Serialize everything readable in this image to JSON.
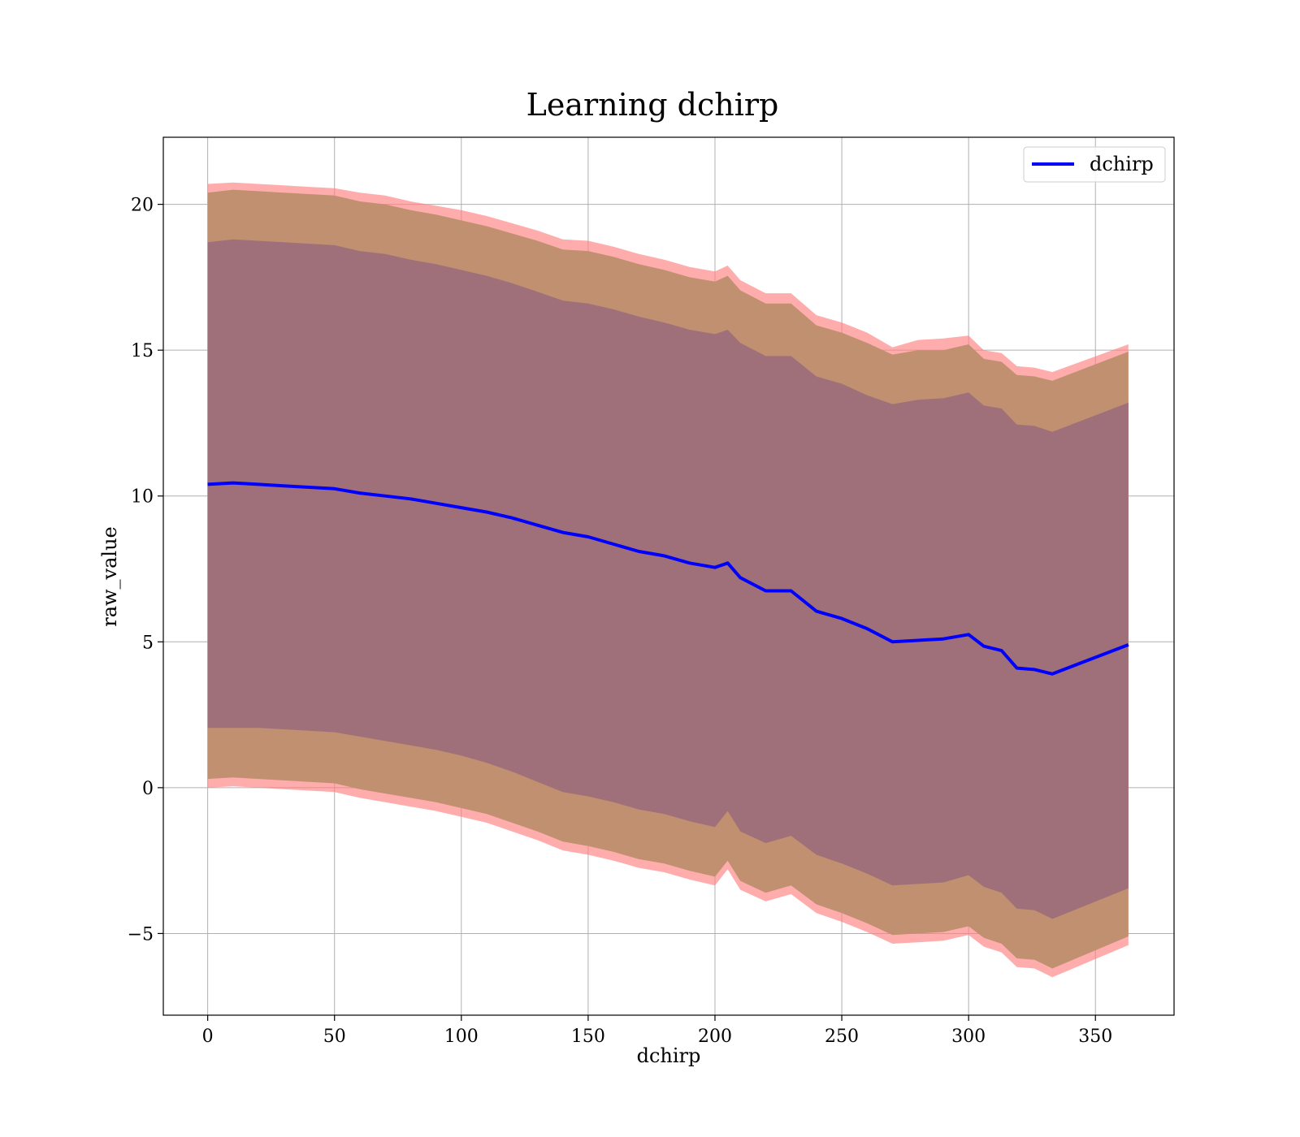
{
  "chart_data": {
    "type": "line",
    "title": "Learning dchirp",
    "xlabel": "dchirp",
    "ylabel": "raw_value",
    "xlim": [
      -17.5,
      381
    ],
    "ylim": [
      -7.8,
      22.3
    ],
    "xticks": [
      0,
      50,
      100,
      150,
      200,
      250,
      300,
      350
    ],
    "xtick_labels": [
      "0",
      "50",
      "100",
      "150",
      "200",
      "250",
      "300",
      "350"
    ],
    "yticks": [
      -5,
      0,
      5,
      10,
      15,
      20
    ],
    "ytick_labels": [
      "−5",
      "0",
      "5",
      "10",
      "15",
      "20"
    ],
    "grid": true,
    "legend": {
      "position": "top-right",
      "entries": [
        "dchirp"
      ]
    },
    "colors": {
      "line": "#0000ff",
      "outer_band": "#ff8080",
      "middle_band": "#c09070",
      "inner_band": "#a0707a",
      "grid": "#b0b0b0"
    },
    "series": [
      {
        "name": "dchirp",
        "x": [
          0,
          10,
          20,
          30,
          40,
          50,
          60,
          70,
          80,
          90,
          100,
          110,
          120,
          130,
          140,
          150,
          160,
          170,
          180,
          190,
          200,
          205,
          210,
          220,
          230,
          240,
          250,
          260,
          270,
          280,
          290,
          300,
          306,
          313,
          319,
          326,
          333,
          363
        ],
        "values": [
          10.4,
          10.45,
          10.4,
          10.35,
          10.3,
          10.25,
          10.1,
          10.0,
          9.9,
          9.75,
          9.6,
          9.45,
          9.25,
          9.0,
          8.75,
          8.6,
          8.35,
          8.1,
          7.95,
          7.7,
          7.55,
          7.7,
          7.2,
          6.75,
          6.75,
          6.05,
          5.8,
          5.45,
          5.0,
          5.05,
          5.1,
          5.25,
          4.85,
          4.7,
          4.1,
          4.05,
          3.9,
          4.9
        ]
      }
    ],
    "bands": {
      "x": [
        0,
        10,
        20,
        30,
        40,
        50,
        60,
        70,
        80,
        90,
        100,
        110,
        120,
        130,
        140,
        150,
        160,
        170,
        180,
        190,
        200,
        205,
        210,
        220,
        230,
        240,
        250,
        260,
        270,
        280,
        290,
        300,
        306,
        313,
        319,
        326,
        333,
        363
      ],
      "outer_upper": [
        20.7,
        20.75,
        20.7,
        20.65,
        20.6,
        20.55,
        20.4,
        20.3,
        20.1,
        19.95,
        19.8,
        19.6,
        19.35,
        19.1,
        18.8,
        18.75,
        18.55,
        18.3,
        18.1,
        17.85,
        17.7,
        17.9,
        17.4,
        16.95,
        16.95,
        16.2,
        15.95,
        15.6,
        15.1,
        15.35,
        15.4,
        15.5,
        15.0,
        14.9,
        14.45,
        14.4,
        14.25,
        15.2
      ],
      "middle_upper": [
        20.4,
        20.5,
        20.45,
        20.4,
        20.35,
        20.3,
        20.1,
        20.0,
        19.8,
        19.65,
        19.45,
        19.25,
        19.0,
        18.75,
        18.45,
        18.4,
        18.2,
        17.95,
        17.75,
        17.5,
        17.35,
        17.55,
        17.05,
        16.6,
        16.6,
        15.85,
        15.6,
        15.25,
        14.85,
        15.0,
        15.0,
        15.2,
        14.7,
        14.6,
        14.15,
        14.1,
        13.95,
        14.95
      ],
      "inner_upper": [
        18.7,
        18.8,
        18.75,
        18.7,
        18.65,
        18.6,
        18.4,
        18.3,
        18.1,
        17.95,
        17.75,
        17.55,
        17.3,
        17.0,
        16.7,
        16.6,
        16.4,
        16.15,
        15.95,
        15.7,
        15.55,
        15.7,
        15.25,
        14.8,
        14.8,
        14.1,
        13.85,
        13.45,
        13.15,
        13.3,
        13.35,
        13.55,
        13.1,
        13.0,
        12.45,
        12.4,
        12.2,
        13.2
      ],
      "inner_lower": [
        2.05,
        2.05,
        2.05,
        2.0,
        1.95,
        1.9,
        1.75,
        1.6,
        1.45,
        1.3,
        1.1,
        0.85,
        0.55,
        0.2,
        -0.15,
        -0.3,
        -0.5,
        -0.75,
        -0.9,
        -1.15,
        -1.35,
        -0.8,
        -1.5,
        -1.9,
        -1.65,
        -2.3,
        -2.6,
        -2.95,
        -3.35,
        -3.3,
        -3.25,
        -3.0,
        -3.4,
        -3.6,
        -4.15,
        -4.2,
        -4.5,
        -3.45
      ],
      "middle_lower": [
        0.3,
        0.35,
        0.3,
        0.25,
        0.2,
        0.15,
        -0.05,
        -0.2,
        -0.35,
        -0.5,
        -0.7,
        -0.9,
        -1.2,
        -1.5,
        -1.85,
        -2.0,
        -2.2,
        -2.45,
        -2.6,
        -2.85,
        -3.05,
        -2.5,
        -3.2,
        -3.6,
        -3.35,
        -4.0,
        -4.3,
        -4.65,
        -5.05,
        -5.0,
        -4.95,
        -4.75,
        -5.15,
        -5.35,
        -5.85,
        -5.9,
        -6.2,
        -5.1
      ],
      "outer_lower": [
        0.0,
        0.05,
        0.0,
        -0.05,
        -0.1,
        -0.15,
        -0.35,
        -0.5,
        -0.65,
        -0.8,
        -1.0,
        -1.2,
        -1.5,
        -1.8,
        -2.15,
        -2.3,
        -2.5,
        -2.75,
        -2.9,
        -3.15,
        -3.35,
        -2.8,
        -3.5,
        -3.9,
        -3.65,
        -4.3,
        -4.6,
        -4.95,
        -5.35,
        -5.3,
        -5.25,
        -5.05,
        -5.45,
        -5.65,
        -6.15,
        -6.2,
        -6.5,
        -5.4
      ]
    }
  }
}
